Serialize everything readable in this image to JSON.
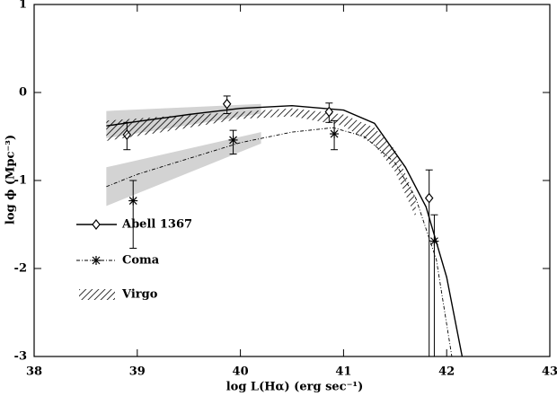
{
  "chart_data": {
    "type": "line",
    "xlabel": "log L(Hα) (erg sec⁻¹)",
    "ylabel": "log ϕ (Mpc⁻³)",
    "xlim": [
      38,
      43
    ],
    "ylim": [
      -3,
      1
    ],
    "xticks": [
      38,
      39,
      40,
      41,
      42,
      43
    ],
    "yticks": [
      -3,
      -2,
      -1,
      0,
      1
    ],
    "bands": [
      {
        "color": "#d3d3d3",
        "x": [
          38.7,
          40.2
        ],
        "upper": [
          -0.21,
          -0.13
        ],
        "lower": [
          -0.52,
          -0.24
        ]
      },
      {
        "color": "#d3d3d3",
        "x": [
          38.7,
          40.2
        ],
        "upper": [
          -0.85,
          -0.45
        ],
        "lower": [
          -1.29,
          -0.58
        ]
      }
    ],
    "series": [
      {
        "name": "Abell 1367",
        "color": "#000000",
        "marker": "diamond",
        "dash": "solid",
        "line_x": [
          38.7,
          39,
          39.5,
          40,
          40.5,
          41,
          41.3,
          41.6,
          41.8,
          42.0,
          42.15
        ],
        "line_y": [
          -0.38,
          -0.33,
          -0.25,
          -0.18,
          -0.15,
          -0.2,
          -0.35,
          -0.85,
          -1.3,
          -2.1,
          -3.0
        ],
        "x": [
          38.9,
          39.87,
          40.86,
          41.83
        ],
        "values": [
          -0.48,
          -0.13,
          -0.22,
          -1.2
        ],
        "err_low": [
          -0.65,
          -0.24,
          -0.34,
          null
        ],
        "err_high": [
          -0.34,
          -0.04,
          -0.12,
          -0.88
        ]
      },
      {
        "name": "Coma",
        "color": "#000000",
        "marker": "asterisk",
        "dash": "dashdot",
        "line_x": [
          38.7,
          39,
          39.5,
          40,
          40.5,
          40.9,
          41.2,
          41.5,
          41.7,
          41.9,
          42.05
        ],
        "line_y": [
          -1.07,
          -0.93,
          -0.75,
          -0.57,
          -0.45,
          -0.4,
          -0.5,
          -0.8,
          -1.2,
          -1.9,
          -3.0
        ],
        "x": [
          38.96,
          39.93,
          40.91,
          41.88
        ],
        "values": [
          -1.23,
          -0.54,
          -0.47,
          -1.69
        ],
        "err_low": [
          -1.77,
          -0.7,
          -0.65,
          null
        ],
        "err_high": [
          -1.0,
          -0.43,
          -0.32,
          -1.39
        ]
      },
      {
        "name": "Virgo",
        "color": "#000000",
        "fill": "hatch",
        "band_x": [
          38.7,
          39.3,
          40.0,
          40.5,
          41.0,
          41.3,
          41.5,
          41.7
        ],
        "upper": [
          -0.32,
          -0.27,
          -0.22,
          -0.18,
          -0.25,
          -0.4,
          -0.65,
          -1.2
        ],
        "lower": [
          -0.55,
          -0.44,
          -0.3,
          -0.27,
          -0.38,
          -0.6,
          -0.9,
          -1.42
        ]
      }
    ]
  }
}
